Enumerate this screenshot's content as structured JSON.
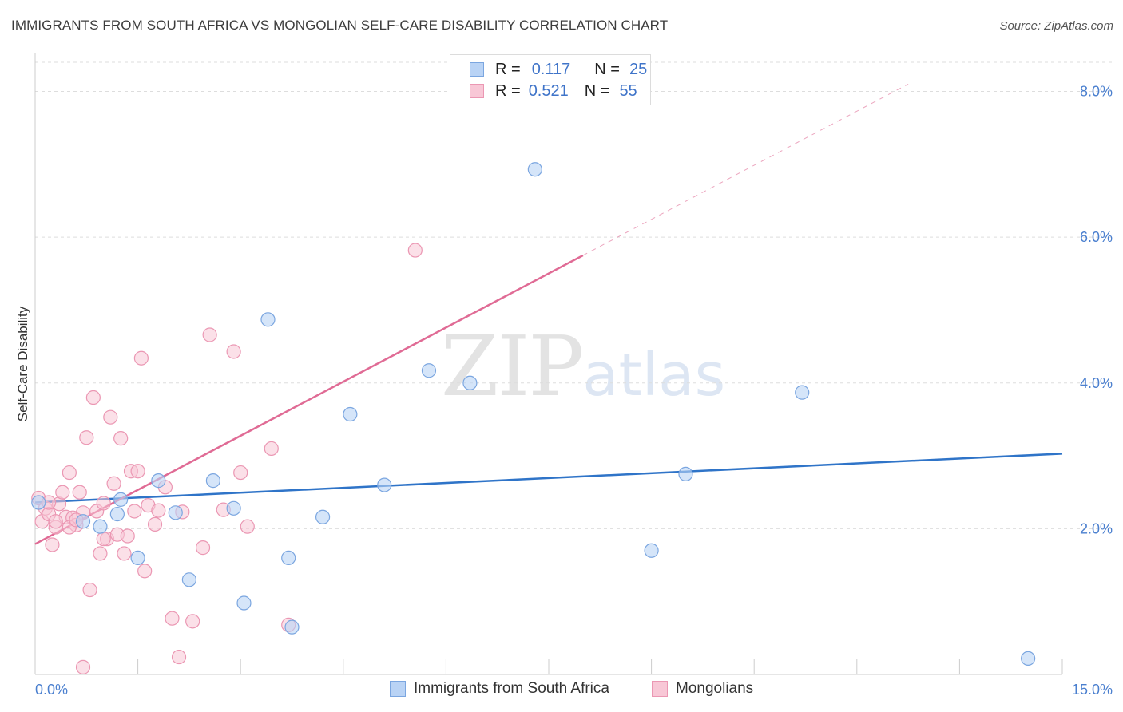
{
  "title": "IMMIGRANTS FROM SOUTH AFRICA VS MONGOLIAN SELF-CARE DISABILITY CORRELATION CHART",
  "source": "Source: ZipAtlas.com",
  "watermark": {
    "zip": "ZIP",
    "atlas": "atlas"
  },
  "legend": {
    "rows": [
      {
        "r_label": "R =",
        "r_value": "0.117",
        "n_label": "N =",
        "n_value": "25"
      },
      {
        "r_label": "R =",
        "r_value": "0.521",
        "n_label": "N =",
        "n_value": "55"
      }
    ]
  },
  "colors": {
    "series1_fill": "#b9d3f5",
    "series1_stroke": "#7ba6e0",
    "series1_line": "#2f74c8",
    "series2_fill": "#f8c7d6",
    "series2_stroke": "#eb97b3",
    "series2_line": "#e06b95",
    "axis_text": "#4a7fcf",
    "grid": "#dddddd"
  },
  "chart_data": {
    "type": "scatter",
    "title": "IMMIGRANTS FROM SOUTH AFRICA VS MONGOLIAN SELF-CARE DISABILITY CORRELATION CHART",
    "xlabel": "",
    "ylabel": "Self-Care Disability",
    "xlim": [
      0,
      15
    ],
    "ylim": [
      0,
      8.4
    ],
    "x_tick_labels": [
      {
        "value": 0,
        "label": "0.0%"
      },
      {
        "value": 15,
        "label": "15.0%"
      }
    ],
    "y_tick_labels": [
      {
        "value": 2,
        "label": "2.0%"
      },
      {
        "value": 4,
        "label": "4.0%"
      },
      {
        "value": 6,
        "label": "6.0%"
      },
      {
        "value": 8,
        "label": "8.0%"
      }
    ],
    "grid": true,
    "legend_position": "top-center",
    "series": [
      {
        "name": "Immigrants from South Africa",
        "points": [
          [
            0.05,
            2.36
          ],
          [
            0.7,
            2.1
          ],
          [
            0.95,
            2.03
          ],
          [
            1.2,
            2.2
          ],
          [
            1.25,
            2.4
          ],
          [
            1.5,
            1.6
          ],
          [
            1.8,
            2.66
          ],
          [
            2.05,
            2.22
          ],
          [
            2.25,
            1.3
          ],
          [
            2.6,
            2.66
          ],
          [
            2.9,
            2.28
          ],
          [
            3.05,
            0.98
          ],
          [
            3.4,
            4.87
          ],
          [
            3.7,
            1.6
          ],
          [
            3.75,
            0.65
          ],
          [
            4.2,
            2.16
          ],
          [
            4.6,
            3.57
          ],
          [
            5.1,
            2.6
          ],
          [
            5.75,
            4.17
          ],
          [
            6.35,
            4.0
          ],
          [
            7.3,
            6.93
          ],
          [
            9.0,
            1.7
          ],
          [
            9.5,
            2.75
          ],
          [
            11.2,
            3.87
          ],
          [
            14.5,
            0.22
          ]
        ],
        "trend": {
          "x0": 0,
          "y0": 2.36,
          "x1": 15,
          "y1": 3.03
        }
      },
      {
        "name": "Mongolians",
        "points": [
          [
            0.05,
            2.42
          ],
          [
            0.1,
            2.1
          ],
          [
            0.15,
            2.28
          ],
          [
            0.2,
            2.2
          ],
          [
            0.25,
            1.78
          ],
          [
            0.3,
            2.02
          ],
          [
            0.35,
            2.34
          ],
          [
            0.4,
            2.5
          ],
          [
            0.45,
            2.16
          ],
          [
            0.5,
            2.77
          ],
          [
            0.55,
            2.15
          ],
          [
            0.6,
            2.05
          ],
          [
            0.65,
            2.5
          ],
          [
            0.7,
            2.22
          ],
          [
            0.75,
            3.25
          ],
          [
            0.8,
            1.16
          ],
          [
            0.85,
            3.8
          ],
          [
            0.9,
            2.24
          ],
          [
            0.95,
            1.66
          ],
          [
            1.0,
            2.35
          ],
          [
            1.05,
            1.86
          ],
          [
            1.1,
            3.53
          ],
          [
            1.15,
            2.62
          ],
          [
            1.2,
            1.92
          ],
          [
            1.25,
            3.24
          ],
          [
            1.3,
            1.66
          ],
          [
            1.35,
            1.9
          ],
          [
            1.4,
            2.79
          ],
          [
            1.45,
            2.24
          ],
          [
            1.5,
            2.79
          ],
          [
            1.55,
            4.34
          ],
          [
            1.6,
            1.42
          ],
          [
            1.65,
            2.32
          ],
          [
            1.75,
            2.06
          ],
          [
            1.8,
            2.25
          ],
          [
            1.9,
            2.57
          ],
          [
            2.0,
            0.77
          ],
          [
            2.1,
            0.24
          ],
          [
            2.15,
            2.23
          ],
          [
            2.3,
            0.73
          ],
          [
            2.45,
            1.74
          ],
          [
            2.55,
            4.66
          ],
          [
            2.75,
            2.26
          ],
          [
            2.9,
            4.43
          ],
          [
            3.0,
            2.77
          ],
          [
            3.1,
            2.03
          ],
          [
            3.45,
            3.1
          ],
          [
            3.7,
            0.68
          ],
          [
            5.55,
            5.82
          ],
          [
            0.7,
            0.1
          ],
          [
            0.5,
            2.02
          ],
          [
            0.3,
            2.1
          ],
          [
            0.2,
            2.36
          ],
          [
            1.0,
            1.86
          ],
          [
            0.6,
            2.12
          ]
        ],
        "trend": {
          "x0": 0,
          "y0": 1.79,
          "x1": 8.0,
          "y1": 5.75
        },
        "trend_dashed": {
          "x0": 8.0,
          "y0": 5.75,
          "x1": 12.75,
          "y1": 8.1
        }
      }
    ]
  },
  "bottom_legend": [
    {
      "label": "Immigrants from South Africa"
    },
    {
      "label": "Mongolians"
    }
  ]
}
